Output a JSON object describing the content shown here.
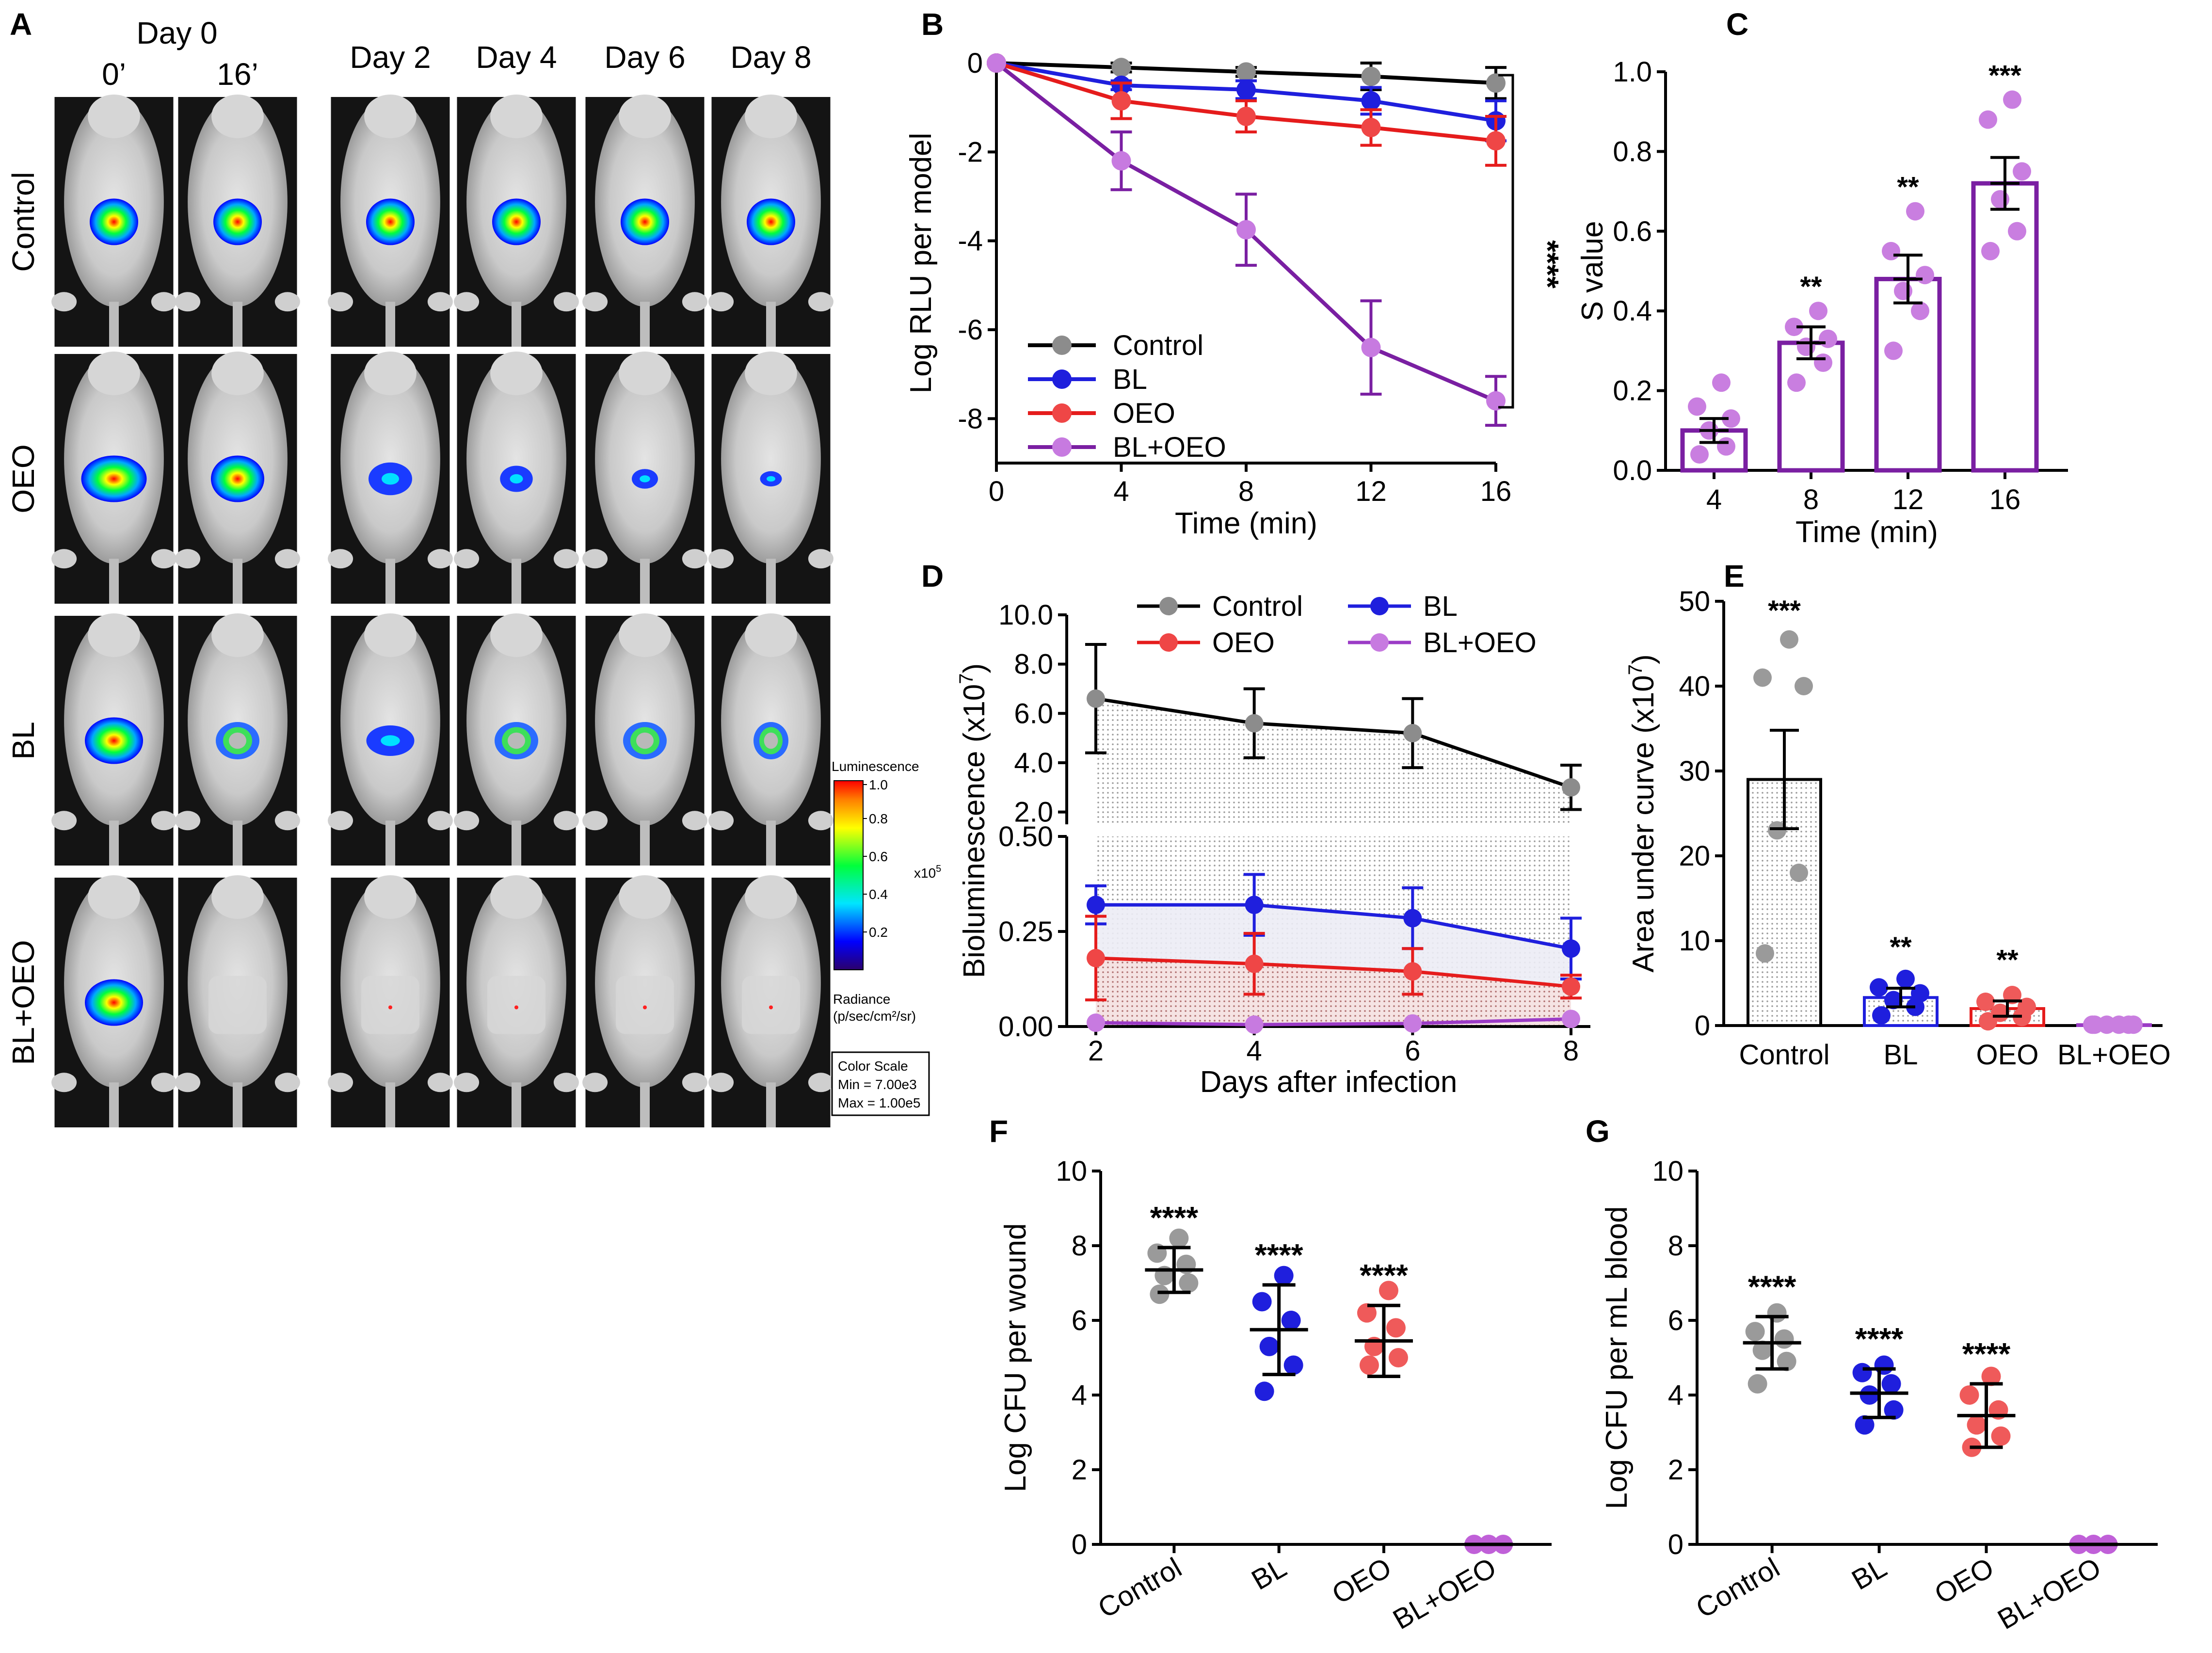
{
  "panel_A": {
    "letter": "A",
    "day0_label": "Day 0",
    "time_labels": [
      "0’",
      "16’"
    ],
    "day_labels": [
      "Day 2",
      "Day 4",
      "Day 6",
      "Day 8"
    ],
    "row_labels": [
      "Control",
      "OEO",
      "BL",
      "BL+OEO"
    ],
    "colorbar": {
      "title": "Luminescence",
      "ticks": [
        "1.0",
        "0.8",
        "0.6",
        "0.4",
        "0.2"
      ],
      "exponent": "x10",
      "exponent_power": "5",
      "radiance_label": "Radiance",
      "radiance_unit": "(p/sec/cm²/sr)",
      "scale_title": "Color Scale",
      "scale_min": "Min = 7.00e3",
      "scale_max": "Max = 1.00e5"
    }
  },
  "chart_data": [
    {
      "panel": "B",
      "type": "line",
      "xlabel": "Time (min)",
      "ylabel": "Log RLU per model",
      "x": [
        0,
        4,
        8,
        12,
        16
      ],
      "xlim": [
        0,
        16
      ],
      "ylim": [
        -9,
        0
      ],
      "yticks": [
        "0",
        "-2",
        "-4",
        "-6",
        "-8"
      ],
      "xticks": [
        "0",
        "4",
        "8",
        "12",
        "16"
      ],
      "series": [
        {
          "name": "Control",
          "color": "#000000",
          "values": [
            0,
            -0.1,
            -0.2,
            -0.3,
            -0.45
          ],
          "err": [
            0,
            0.1,
            0.1,
            0.3,
            0.35
          ]
        },
        {
          "name": "BL",
          "color": "#1f1fdd",
          "values": [
            0,
            -0.5,
            -0.6,
            -0.85,
            -1.3
          ],
          "err": [
            0,
            0.1,
            0.2,
            0.3,
            0.45
          ]
        },
        {
          "name": "OEO",
          "color": "#e51c1c",
          "values": [
            0,
            -0.85,
            -1.2,
            -1.45,
            -1.75
          ],
          "err": [
            0,
            0.4,
            0.35,
            0.4,
            0.55
          ]
        },
        {
          "name": "BL+OEO",
          "color": "#7a1fa2",
          "values": [
            0,
            -2.2,
            -3.75,
            -6.4,
            -7.6
          ],
          "err": [
            0,
            0.65,
            0.8,
            1.05,
            0.55
          ]
        }
      ],
      "significance": "****"
    },
    {
      "panel": "C",
      "type": "bar",
      "xlabel": "Time (min)",
      "ylabel": "S value",
      "categories": [
        "4",
        "8",
        "12",
        "16"
      ],
      "values": [
        0.1,
        0.32,
        0.48,
        0.72
      ],
      "err": [
        0.03,
        0.04,
        0.06,
        0.065
      ],
      "points": [
        [
          0.04,
          0.06,
          0.1,
          0.13,
          0.16,
          0.22
        ],
        [
          0.22,
          0.27,
          0.31,
          0.33,
          0.36,
          0.4
        ],
        [
          0.3,
          0.4,
          0.45,
          0.49,
          0.55,
          0.65
        ],
        [
          0.55,
          0.6,
          0.68,
          0.75,
          0.88,
          0.93
        ]
      ],
      "stars": [
        "",
        "**",
        "**",
        "***"
      ],
      "ylim": [
        0,
        1.0
      ],
      "yticks": [
        "0.0",
        "0.2",
        "0.4",
        "0.6",
        "0.8",
        "1.0"
      ],
      "color": "#7a1fa2",
      "point_color": "#c97ee0"
    },
    {
      "panel": "D",
      "type": "line",
      "xlabel": "Days after infection",
      "ylabel": "Bioluminescence (x10",
      "ylabel_power": "7",
      "x": [
        2,
        4,
        6,
        8
      ],
      "xticks": [
        "2",
        "4",
        "6",
        "8"
      ],
      "upper_ylim": [
        1.5,
        10.0
      ],
      "upper_yticks": [
        "10.0",
        "8.0",
        "6.0",
        "4.0",
        "2.0"
      ],
      "lower_ylim": [
        0,
        0.5
      ],
      "lower_yticks": [
        "0.50",
        "0.25",
        "0.00"
      ],
      "series": [
        {
          "name": "Control",
          "color": "#000000",
          "values": [
            6.6,
            5.6,
            5.2,
            3.0
          ],
          "err": [
            2.2,
            1.4,
            1.4,
            0.9
          ],
          "axis": "upper"
        },
        {
          "name": "BL",
          "color": "#1f1fdd",
          "values": [
            0.32,
            0.32,
            0.285,
            0.205
          ],
          "err": [
            0.05,
            0.08,
            0.08,
            0.08
          ],
          "axis": "lower"
        },
        {
          "name": "OEO",
          "color": "#e51c1c",
          "values": [
            0.18,
            0.165,
            0.145,
            0.105
          ],
          "err": [
            0.11,
            0.08,
            0.06,
            0.03
          ],
          "axis": "lower"
        },
        {
          "name": "BL+OEO",
          "color": "#9b3bc6",
          "values": [
            0.01,
            0.005,
            0.008,
            0.02
          ],
          "err": [
            0,
            0,
            0,
            0
          ],
          "axis": "lower"
        }
      ]
    },
    {
      "panel": "E",
      "type": "bar",
      "ylabel": "Area under curve (x10",
      "ylabel_power": "7",
      "categories": [
        "Control",
        "BL",
        "OEO",
        "BL+OEO"
      ],
      "values": [
        29,
        3.3,
        2.0,
        0.1
      ],
      "err": [
        5.8,
        1.1,
        0.9,
        0
      ],
      "points": [
        [
          8.5,
          18,
          23,
          40,
          41,
          45.5
        ],
        [
          1.2,
          2.2,
          3.0,
          3.8,
          4.5,
          5.5
        ],
        [
          0.5,
          1.0,
          1.5,
          2.2,
          2.8,
          3.6
        ],
        [
          0.1,
          0.1,
          0.1,
          0.1,
          0.1,
          0.1
        ]
      ],
      "stars": [
        "***",
        "**",
        "**",
        ""
      ],
      "ylim": [
        0,
        50
      ],
      "yticks": [
        "0",
        "10",
        "20",
        "30",
        "40",
        "50"
      ],
      "colors": [
        "#000000",
        "#1f1fdd",
        "#e51c1c",
        "#9b3bc6"
      ],
      "point_colors": [
        "#9a9a9a",
        "#1f1fdd",
        "#ef5a5a",
        "#c97ee0"
      ]
    },
    {
      "panel": "F",
      "type": "scatter",
      "ylabel": "Log CFU per wound",
      "categories": [
        "Control",
        "BL",
        "OEO",
        "BL+OEO"
      ],
      "means": [
        7.35,
        5.75,
        5.45,
        0
      ],
      "sd": [
        0.6,
        1.2,
        0.95,
        0
      ],
      "points": [
        [
          6.7,
          7.0,
          7.2,
          7.5,
          7.8,
          8.2
        ],
        [
          4.1,
          4.8,
          5.3,
          6.0,
          6.5,
          7.2
        ],
        [
          4.8,
          5.0,
          5.3,
          5.8,
          6.2,
          6.8
        ],
        [
          0,
          0,
          0
        ]
      ],
      "stars": [
        "****",
        "****",
        "****",
        ""
      ],
      "ylim": [
        0,
        10
      ],
      "yticks": [
        "0",
        "2",
        "4",
        "6",
        "8",
        "10"
      ],
      "colors": [
        "#9a9a9a",
        "#1f1fdd",
        "#ef5a5a",
        "#c060d8"
      ]
    },
    {
      "panel": "G",
      "type": "scatter",
      "ylabel": "Log CFU per mL blood",
      "categories": [
        "Control",
        "BL",
        "OEO",
        "BL+OEO"
      ],
      "means": [
        5.4,
        4.05,
        3.45,
        0
      ],
      "sd": [
        0.7,
        0.65,
        0.85,
        0
      ],
      "points": [
        [
          4.3,
          4.9,
          5.2,
          5.5,
          5.7,
          6.2
        ],
        [
          3.2,
          3.6,
          4.0,
          4.3,
          4.6,
          4.8
        ],
        [
          2.6,
          2.9,
          3.2,
          3.6,
          4.0,
          4.5
        ],
        [
          0,
          0,
          0
        ]
      ],
      "stars": [
        "****",
        "****",
        "****",
        ""
      ],
      "ylim": [
        0,
        10
      ],
      "yticks": [
        "0",
        "2",
        "4",
        "6",
        "8",
        "10"
      ],
      "colors": [
        "#9a9a9a",
        "#1f1fdd",
        "#ef5a5a",
        "#c060d8"
      ]
    }
  ]
}
